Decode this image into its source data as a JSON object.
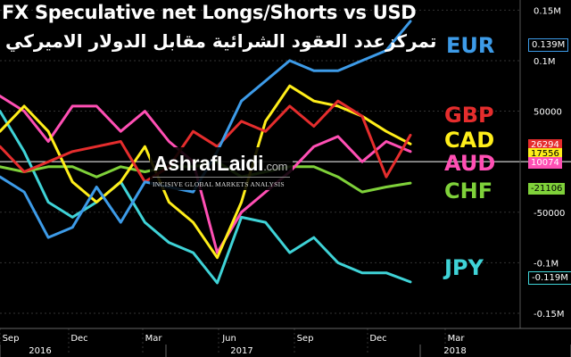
{
  "title": "FX Speculative net Longs/Shorts vs USD",
  "title_ar": "تمركزعدد العقود الشرائية مقابل الدولار الاميركي",
  "watermark": {
    "brand": "AshrafLaidi",
    "suffix": ".com",
    "tagline": "INCISIVE GLOBAL MARKETS ANALYSIS"
  },
  "colors": {
    "EUR": "#3d9be8",
    "GBP": "#e52d2d",
    "CAD": "#ffee1a",
    "AUD": "#ff4fb4",
    "CHF": "#7fd13a",
    "JPY": "#3fd3d7"
  },
  "value_boxes": [
    {
      "series": "EUR",
      "text": "0.139M"
    },
    {
      "series": "GBP",
      "text": "26294"
    },
    {
      "series": "CAD",
      "text": "17556"
    },
    {
      "series": "AUD",
      "text": "10074"
    },
    {
      "series": "CHF",
      "text": "-21106"
    },
    {
      "series": "JPY",
      "text": "-0.119M"
    }
  ],
  "chart_data": {
    "type": "line",
    "title": "FX Speculative net Longs/Shorts vs USD",
    "y_ticks": [
      {
        "value": 150000,
        "label": "0.15M"
      },
      {
        "value": 100000,
        "label": "0.1M"
      },
      {
        "value": 50000,
        "label": "50000"
      },
      {
        "value": -50000,
        "label": "-50000"
      },
      {
        "value": -100000,
        "label": "-0.1M"
      },
      {
        "value": -150000,
        "label": "-0.15M"
      }
    ],
    "ylim": [
      -165000,
      160000
    ],
    "zero_line": 0,
    "x_month_ticks": [
      "Sep",
      "Dec",
      "Mar",
      "Jun",
      "Sep",
      "Dec",
      "Mar"
    ],
    "x_year_labels": [
      "2016",
      "2017",
      "2018"
    ],
    "x": [
      "2016-08",
      "2016-09",
      "2016-10",
      "2016-11",
      "2016-12",
      "2017-01",
      "2017-02",
      "2017-03",
      "2017-04",
      "2017-05",
      "2017-06",
      "2017-07",
      "2017-08",
      "2017-09",
      "2017-10",
      "2017-11",
      "2017-12",
      "2018-01"
    ],
    "series": [
      {
        "name": "EUR",
        "values": [
          -15000,
          -30000,
          -75000,
          -65000,
          -25000,
          -60000,
          -20000,
          -25000,
          -30000,
          10000,
          60000,
          80000,
          100000,
          90000,
          90000,
          100000,
          110000,
          139000
        ]
      },
      {
        "name": "GBP",
        "values": [
          15000,
          -10000,
          0,
          10000,
          15000,
          20000,
          -20000,
          -5000,
          30000,
          15000,
          40000,
          30000,
          55000,
          35000,
          60000,
          45000,
          -15000,
          26294
        ]
      },
      {
        "name": "CAD",
        "values": [
          30000,
          55000,
          30000,
          -20000,
          -40000,
          -20000,
          15000,
          -40000,
          -60000,
          -95000,
          -40000,
          40000,
          75000,
          60000,
          55000,
          45000,
          30000,
          17556
        ]
      },
      {
        "name": "AUD",
        "values": [
          65000,
          50000,
          20000,
          55000,
          55000,
          30000,
          50000,
          20000,
          0,
          -90000,
          -50000,
          -30000,
          -10000,
          15000,
          25000,
          0,
          20000,
          10074
        ]
      },
      {
        "name": "CHF",
        "values": [
          -5000,
          -10000,
          -5000,
          -5000,
          -15000,
          -5000,
          -10000,
          -5000,
          -5000,
          0,
          -15000,
          -10000,
          -5000,
          -5000,
          -15000,
          -30000,
          -25000,
          -21106
        ]
      },
      {
        "name": "JPY",
        "values": [
          50000,
          10000,
          -40000,
          -55000,
          -40000,
          -20000,
          -60000,
          -80000,
          -90000,
          -120000,
          -55000,
          -60000,
          -90000,
          -75000,
          -100000,
          -110000,
          -110000,
          -119000
        ]
      }
    ]
  }
}
